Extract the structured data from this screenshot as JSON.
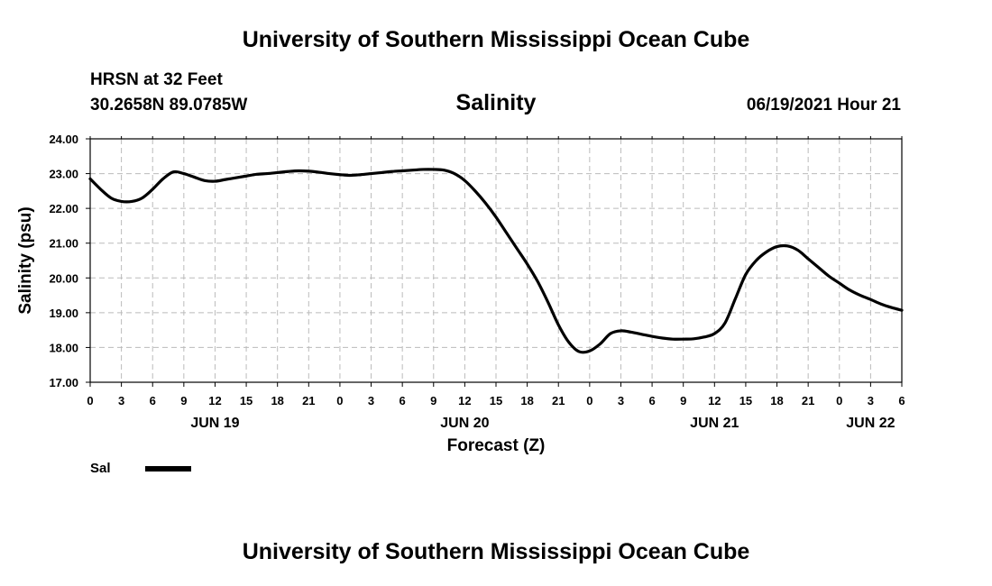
{
  "header": {
    "title": "University of Southern Mississippi Ocean Cube",
    "station": "HRSN at 32 Feet",
    "coordinates": "30.2658N  89.0785W",
    "parameter": "Salinity",
    "datetime": "06/19/2021 Hour 21"
  },
  "footer": {
    "title": "University of Southern Mississippi Ocean Cube"
  },
  "legend": {
    "label": "Sal",
    "color": "#000000"
  },
  "chart_data": {
    "type": "line",
    "title": "Salinity",
    "xlabel": "Forecast (Z)",
    "ylabel": "Salinity (psu)",
    "ylim": [
      17,
      24
    ],
    "yticks": [
      "17.00",
      "18.00",
      "19.00",
      "20.00",
      "21.00",
      "22.00",
      "23.00",
      "24.00"
    ],
    "xlim": [
      0,
      78
    ],
    "xticks": [
      {
        "hour": 0,
        "label": "0"
      },
      {
        "hour": 3,
        "label": "3"
      },
      {
        "hour": 6,
        "label": "6"
      },
      {
        "hour": 9,
        "label": "9"
      },
      {
        "hour": 12,
        "label": "12"
      },
      {
        "hour": 15,
        "label": "15"
      },
      {
        "hour": 18,
        "label": "18"
      },
      {
        "hour": 21,
        "label": "21"
      },
      {
        "hour": 24,
        "label": "0"
      },
      {
        "hour": 27,
        "label": "3"
      },
      {
        "hour": 30,
        "label": "6"
      },
      {
        "hour": 33,
        "label": "9"
      },
      {
        "hour": 36,
        "label": "12"
      },
      {
        "hour": 39,
        "label": "15"
      },
      {
        "hour": 42,
        "label": "18"
      },
      {
        "hour": 45,
        "label": "21"
      },
      {
        "hour": 48,
        "label": "0"
      },
      {
        "hour": 51,
        "label": "3"
      },
      {
        "hour": 54,
        "label": "6"
      },
      {
        "hour": 57,
        "label": "9"
      },
      {
        "hour": 60,
        "label": "12"
      },
      {
        "hour": 63,
        "label": "15"
      },
      {
        "hour": 66,
        "label": "18"
      },
      {
        "hour": 69,
        "label": "21"
      },
      {
        "hour": 72,
        "label": "0"
      },
      {
        "hour": 75,
        "label": "3"
      },
      {
        "hour": 78,
        "label": "6"
      }
    ],
    "date_labels": [
      {
        "hour": 12,
        "label": "JUN 19"
      },
      {
        "hour": 36,
        "label": "JUN 20"
      },
      {
        "hour": 60,
        "label": "JUN 21"
      },
      {
        "hour": 75,
        "label": "JUN 22"
      }
    ],
    "grid": true,
    "series": [
      {
        "name": "Sal",
        "color": "#000000",
        "x": [
          0,
          1,
          2,
          3,
          4,
          5,
          6,
          7,
          8,
          9,
          10,
          11,
          12,
          13,
          14,
          15,
          16,
          17,
          18,
          19,
          20,
          21,
          22,
          23,
          24,
          25,
          26,
          27,
          28,
          29,
          30,
          31,
          32,
          33,
          34,
          35,
          36,
          37,
          38,
          39,
          40,
          41,
          42,
          43,
          44,
          45,
          46,
          47,
          48,
          49,
          50,
          51,
          52,
          53,
          54,
          55,
          56,
          57,
          58,
          59,
          60,
          61,
          62,
          63,
          64,
          65,
          66,
          67,
          68,
          69,
          70,
          71,
          72,
          73,
          74,
          75,
          76,
          77,
          78
        ],
        "values": [
          22.85,
          22.55,
          22.3,
          22.2,
          22.2,
          22.3,
          22.55,
          22.85,
          23.05,
          23.0,
          22.9,
          22.8,
          22.78,
          22.83,
          22.88,
          22.93,
          22.98,
          23.0,
          23.03,
          23.06,
          23.08,
          23.07,
          23.04,
          23.0,
          22.97,
          22.95,
          22.97,
          23.0,
          23.03,
          23.06,
          23.08,
          23.1,
          23.12,
          23.12,
          23.1,
          23.0,
          22.8,
          22.5,
          22.15,
          21.75,
          21.3,
          20.85,
          20.4,
          19.9,
          19.3,
          18.65,
          18.15,
          17.88,
          17.9,
          18.1,
          18.4,
          18.48,
          18.44,
          18.38,
          18.32,
          18.27,
          18.24,
          18.24,
          18.25,
          18.3,
          18.4,
          18.7,
          19.4,
          20.1,
          20.5,
          20.75,
          20.9,
          20.92,
          20.8,
          20.55,
          20.3,
          20.05,
          19.85,
          19.65,
          19.5,
          19.38,
          19.25,
          19.15,
          19.07
        ]
      }
    ]
  }
}
